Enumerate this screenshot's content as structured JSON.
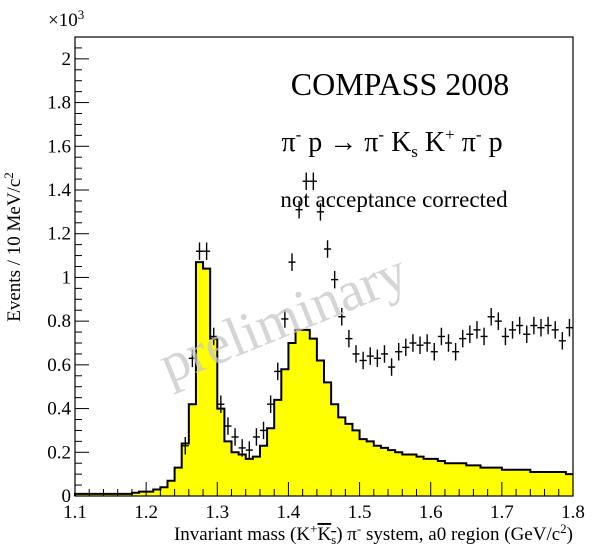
{
  "chart_data": {
    "type": "histogram",
    "xlabel_parts": {
      "pre": "Invariant mass (K",
      "sup1": "+",
      "ks_k": "K",
      "ks_s": "s",
      "mid": ") π",
      "sup2": "-",
      "post": " system, a0 region (GeV/c",
      "sup3": "2",
      "end": ")"
    },
    "ylabel_parts": {
      "main": "Events / 10 MeV/c",
      "sup": "2"
    },
    "y_exponent": "×10",
    "y_exponent_sup": "3",
    "xlim": [
      1.1,
      1.8
    ],
    "ylim": [
      0,
      2.1
    ],
    "x_ticks": [
      "1.1",
      "1.2",
      "1.3",
      "1.4",
      "1.5",
      "1.6",
      "1.7",
      "1.8"
    ],
    "y_ticks": [
      "0",
      "0.2",
      "0.4",
      "0.6",
      "0.8",
      "1",
      "1.2",
      "1.4",
      "1.6",
      "1.8",
      "2"
    ],
    "fill_color": "#ffff00",
    "line_color": "#000000",
    "annotations": {
      "experiment": "COMPASS 2008",
      "reaction_parts": [
        "π",
        "-",
        " p → π",
        "-",
        " K",
        "s",
        " K",
        "+",
        " π",
        "-",
        " p"
      ],
      "note": "not acceptance corrected",
      "watermark": "preliminary"
    },
    "series": [
      {
        "type": "histogram",
        "bin_width": 0.01,
        "bins": [
          [
            1.1,
            0.01
          ],
          [
            1.11,
            0.01
          ],
          [
            1.12,
            0.01
          ],
          [
            1.13,
            0.01
          ],
          [
            1.14,
            0.01
          ],
          [
            1.15,
            0.01
          ],
          [
            1.16,
            0.01
          ],
          [
            1.17,
            0.01
          ],
          [
            1.18,
            0.015
          ],
          [
            1.19,
            0.02
          ],
          [
            1.2,
            0.02
          ],
          [
            1.21,
            0.03
          ],
          [
            1.22,
            0.04
          ],
          [
            1.23,
            0.07
          ],
          [
            1.24,
            0.13
          ],
          [
            1.25,
            0.24
          ],
          [
            1.26,
            0.42
          ],
          [
            1.27,
            1.07
          ],
          [
            1.28,
            1.04
          ],
          [
            1.29,
            0.72
          ],
          [
            1.3,
            0.4
          ],
          [
            1.31,
            0.25
          ],
          [
            1.32,
            0.2
          ],
          [
            1.33,
            0.19
          ],
          [
            1.34,
            0.17
          ],
          [
            1.35,
            0.18
          ],
          [
            1.36,
            0.23
          ],
          [
            1.37,
            0.31
          ],
          [
            1.38,
            0.44
          ],
          [
            1.39,
            0.58
          ],
          [
            1.4,
            0.7
          ],
          [
            1.41,
            0.76
          ],
          [
            1.42,
            0.76
          ],
          [
            1.43,
            0.72
          ],
          [
            1.44,
            0.62
          ],
          [
            1.45,
            0.52
          ],
          [
            1.46,
            0.42
          ],
          [
            1.47,
            0.36
          ],
          [
            1.48,
            0.33
          ],
          [
            1.49,
            0.3
          ],
          [
            1.5,
            0.26
          ],
          [
            1.51,
            0.25
          ],
          [
            1.52,
            0.23
          ],
          [
            1.53,
            0.22
          ],
          [
            1.54,
            0.21
          ],
          [
            1.55,
            0.2
          ],
          [
            1.56,
            0.19
          ],
          [
            1.57,
            0.19
          ],
          [
            1.58,
            0.18
          ],
          [
            1.59,
            0.17
          ],
          [
            1.6,
            0.17
          ],
          [
            1.61,
            0.16
          ],
          [
            1.62,
            0.15
          ],
          [
            1.63,
            0.15
          ],
          [
            1.64,
            0.15
          ],
          [
            1.65,
            0.14
          ],
          [
            1.66,
            0.14
          ],
          [
            1.67,
            0.13
          ],
          [
            1.68,
            0.13
          ],
          [
            1.69,
            0.13
          ],
          [
            1.7,
            0.12
          ],
          [
            1.71,
            0.12
          ],
          [
            1.72,
            0.12
          ],
          [
            1.73,
            0.12
          ],
          [
            1.74,
            0.11
          ],
          [
            1.75,
            0.11
          ],
          [
            1.76,
            0.11
          ],
          [
            1.77,
            0.11
          ],
          [
            1.78,
            0.11
          ],
          [
            1.79,
            0.1
          ]
        ]
      },
      {
        "type": "points_with_errors",
        "x_err": 0.005,
        "y_err": 0.04,
        "points": [
          [
            1.255,
            0.23
          ],
          [
            1.265,
            0.63
          ],
          [
            1.275,
            1.12
          ],
          [
            1.285,
            1.12
          ],
          [
            1.295,
            0.73
          ],
          [
            1.305,
            0.42
          ],
          [
            1.315,
            0.32
          ],
          [
            1.325,
            0.27
          ],
          [
            1.335,
            0.22
          ],
          [
            1.345,
            0.21
          ],
          [
            1.355,
            0.27
          ],
          [
            1.365,
            0.3
          ],
          [
            1.375,
            0.42
          ],
          [
            1.385,
            0.57
          ],
          [
            1.395,
            0.81
          ],
          [
            1.405,
            1.07
          ],
          [
            1.415,
            1.31
          ],
          [
            1.425,
            1.44
          ],
          [
            1.435,
            1.44
          ],
          [
            1.445,
            1.3
          ],
          [
            1.455,
            1.13
          ],
          [
            1.465,
            0.99
          ],
          [
            1.475,
            0.82
          ],
          [
            1.485,
            0.72
          ],
          [
            1.495,
            0.65
          ],
          [
            1.505,
            0.62
          ],
          [
            1.515,
            0.64
          ],
          [
            1.525,
            0.63
          ],
          [
            1.535,
            0.65
          ],
          [
            1.545,
            0.59
          ],
          [
            1.555,
            0.66
          ],
          [
            1.565,
            0.68
          ],
          [
            1.575,
            0.7
          ],
          [
            1.585,
            0.69
          ],
          [
            1.595,
            0.7
          ],
          [
            1.605,
            0.66
          ],
          [
            1.615,
            0.73
          ],
          [
            1.625,
            0.7
          ],
          [
            1.635,
            0.66
          ],
          [
            1.645,
            0.72
          ],
          [
            1.655,
            0.74
          ],
          [
            1.665,
            0.76
          ],
          [
            1.675,
            0.73
          ],
          [
            1.685,
            0.82
          ],
          [
            1.695,
            0.8
          ],
          [
            1.705,
            0.73
          ],
          [
            1.715,
            0.76
          ],
          [
            1.725,
            0.78
          ],
          [
            1.735,
            0.74
          ],
          [
            1.745,
            0.78
          ],
          [
            1.755,
            0.77
          ],
          [
            1.765,
            0.78
          ],
          [
            1.775,
            0.76
          ],
          [
            1.785,
            0.71
          ],
          [
            1.795,
            0.77
          ]
        ]
      }
    ]
  }
}
